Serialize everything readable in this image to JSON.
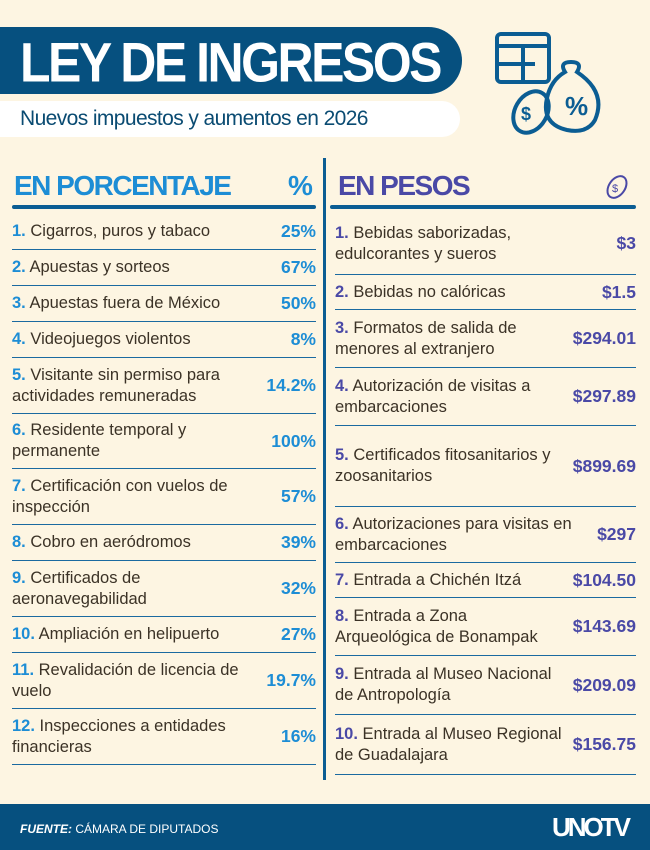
{
  "header": {
    "title": "LEY DE INGRESOS",
    "subtitle": "Nuevos impuestos y aumentos en 2026",
    "icon": "calculator-money-bag-icon"
  },
  "left": {
    "heading": "EN PORCENTAJE",
    "symbol": "%",
    "items": [
      {
        "n": "1.",
        "label": "Cigarros, puros y tabaco",
        "value": "25%"
      },
      {
        "n": "2.",
        "label": "Apuestas y sorteos",
        "value": "67%"
      },
      {
        "n": "3.",
        "label": "Apuestas fuera de México",
        "value": "50%"
      },
      {
        "n": "4.",
        "label": "Videojuegos violentos",
        "value": "8%"
      },
      {
        "n": "5.",
        "label": "Visitante sin permiso para actividades remuneradas",
        "value": "14.2%"
      },
      {
        "n": "6.",
        "label": "Residente temporal y permanente",
        "value": "100%"
      },
      {
        "n": "7.",
        "label": "Certificación con vuelos de inspección",
        "value": "57%"
      },
      {
        "n": "8.",
        "label": "Cobro en aeródromos",
        "value": "39%"
      },
      {
        "n": "9.",
        "label": "Certificados de aeronavegabilidad",
        "value": "32%"
      },
      {
        "n": "10.",
        "label": "Ampliación en helipuerto",
        "value": "27%"
      },
      {
        "n": "11.",
        "label": "Revalidación de licencia de vuelo",
        "value": "19.7%"
      },
      {
        "n": "12.",
        "label": "Inspecciones a entidades financieras",
        "value": "16%"
      }
    ]
  },
  "right": {
    "heading": "EN PESOS",
    "icon": "coin-icon",
    "items": [
      {
        "n": "1.",
        "label": "Bebidas saborizadas, edulcorantes y sueros",
        "value": "$3"
      },
      {
        "n": "2.",
        "label": "Bebidas no calóricas",
        "value": "$1.5"
      },
      {
        "n": "3.",
        "label": "Formatos de salida de menores al extranjero",
        "value": "$294.01"
      },
      {
        "n": "4.",
        "label": "Autorización de visitas a embarcaciones",
        "value": "$297.89"
      },
      {
        "n": "5.",
        "label": "Certificados fitosanitarios y zoosanitarios",
        "value": "$899.69"
      },
      {
        "n": "6.",
        "label": "Autorizaciones para visitas en embarcaciones",
        "value": "$297"
      },
      {
        "n": "7.",
        "label": "Entrada a Chichén Itzá",
        "value": "$104.50"
      },
      {
        "n": "8.",
        "label": "Entrada a Zona Arqueológica de Bonampak",
        "value": "$143.69"
      },
      {
        "n": "9.",
        "label": "Entrada al Museo Nacional de Antropología",
        "value": "$209.09"
      },
      {
        "n": "10.",
        "label": "Entrada al Museo Regional de Guadalajara",
        "value": "$156.75"
      }
    ]
  },
  "footer": {
    "source_label": "FUENTE:",
    "source": "CÁMARA DE DIPUTADOS",
    "logo": "UNOTV"
  },
  "colors": {
    "navy": "#06507f",
    "blue": "#1d8dd5",
    "purple": "#4a49a6",
    "background": "#fdf5e2"
  }
}
